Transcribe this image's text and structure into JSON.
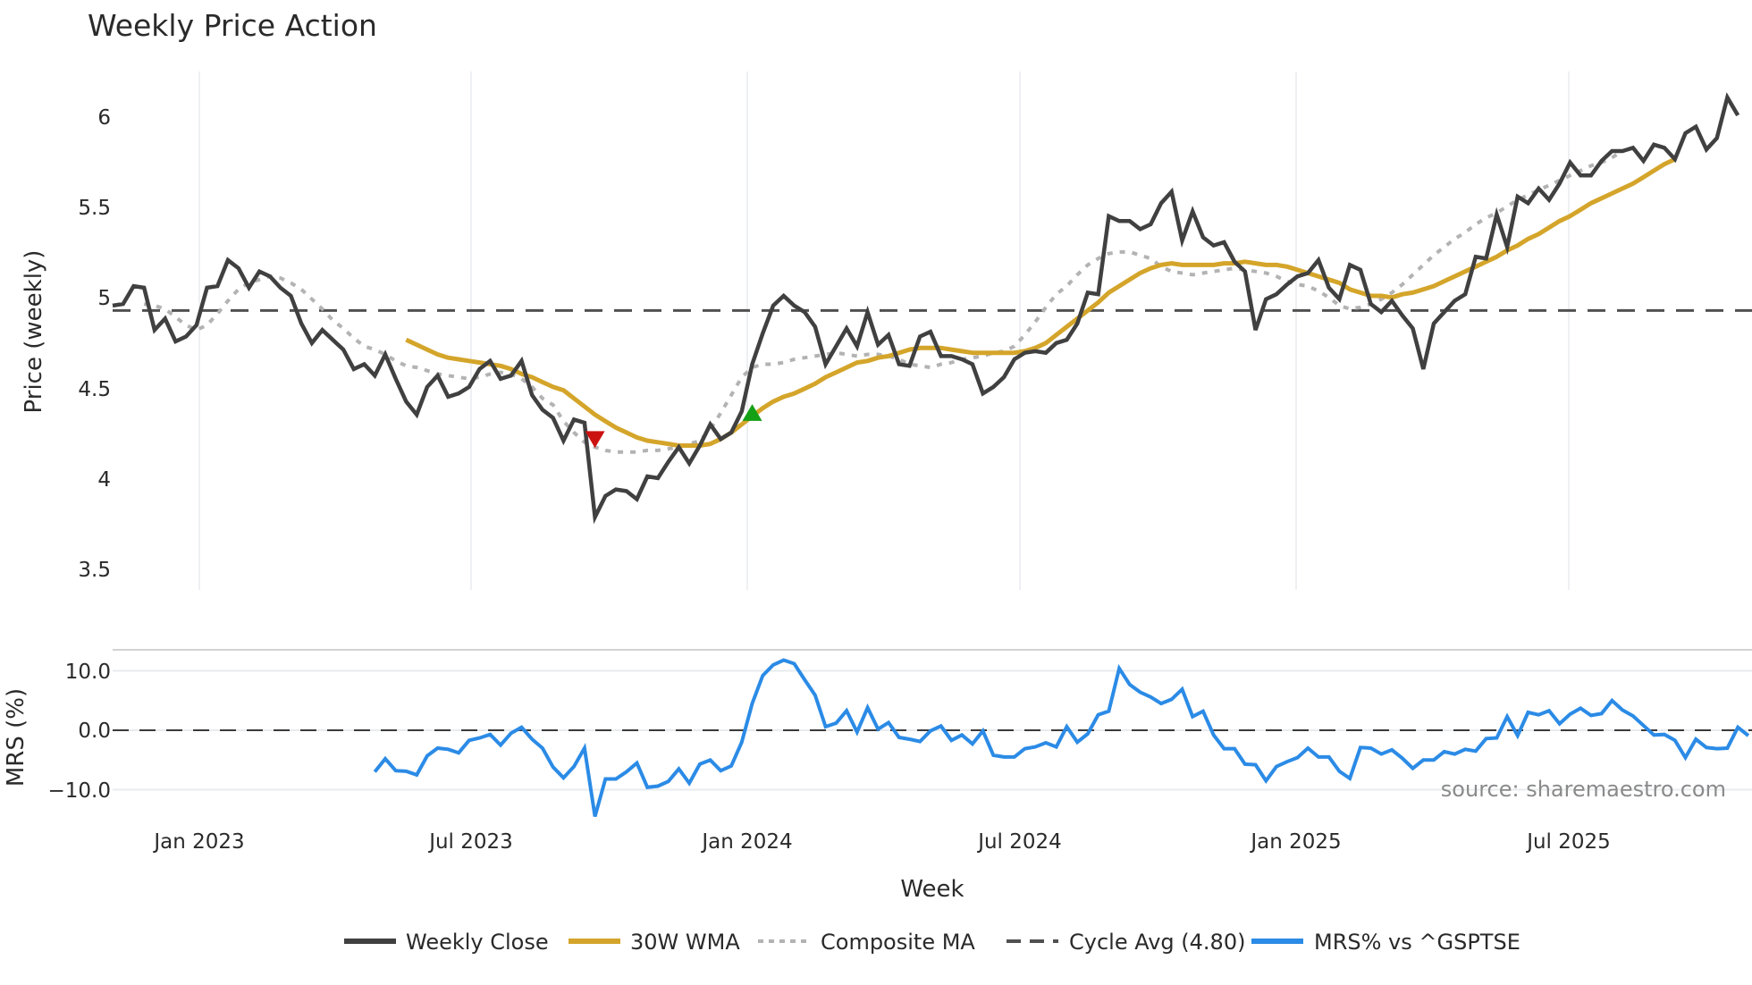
{
  "title": "Weekly Price Action",
  "source_note": "source: sharemaestro.com",
  "price_panel": {
    "ylabel": "Price (weekly)",
    "yticks": [
      "6",
      "5.5",
      "5",
      "4.5",
      "4",
      "3.5"
    ],
    "ytick_values": [
      6,
      5.5,
      5,
      4.5,
      4,
      3.5
    ]
  },
  "mrs_panel": {
    "ylabel": "MRS (%)",
    "yticks": [
      "10.0",
      "0.0",
      "−10.0"
    ],
    "ytick_values": [
      10,
      0,
      -10
    ]
  },
  "xaxis": {
    "label": "Week",
    "ticks": [
      "Jan 2023",
      "Jul 2023",
      "Jan 2024",
      "Jul 2024",
      "Jan 2025",
      "Jul 2025"
    ]
  },
  "legend": [
    {
      "label": "Weekly Close",
      "style": "solid",
      "color": "#404040"
    },
    {
      "label": "30W WMA",
      "style": "solid",
      "color": "#d4a52a"
    },
    {
      "label": "Composite MA",
      "style": "dotted",
      "color": "#b3b3b3"
    },
    {
      "label": "Cycle Avg (4.80)",
      "style": "dashed",
      "color": "#505050"
    },
    {
      "label": "MRS% vs ^GSPTSE",
      "style": "solid",
      "color": "#2b8be6"
    }
  ],
  "colors": {
    "close": "#404040",
    "wma": "#d4a52a",
    "composite": "#b3b3b3",
    "cycle": "#505050",
    "mrs": "#2b8be6",
    "buy_marker": "#16a016",
    "sell_marker": "#cc1111",
    "grid": "#e8ecef"
  },
  "chart_data": [
    {
      "type": "line",
      "title": "Weekly Price Action",
      "xlabel": "Week",
      "ylabel": "Price (weekly)",
      "ylim": [
        3.38,
        6.25
      ],
      "grid": true,
      "legend_position": "bottom",
      "x_tick_labels": [
        "Jan 2023",
        "Jul 2023",
        "Jan 2024",
        "Jul 2024",
        "Jan 2025",
        "Jul 2025"
      ],
      "x_start": "Nov 2022",
      "x_end": "Oct 2025",
      "series": [
        {
          "name": "Weekly Close",
          "values": [
            4.83,
            4.84,
            4.95,
            4.94,
            4.68,
            4.75,
            4.61,
            4.64,
            4.71,
            4.94,
            4.95,
            5.11,
            5.06,
            4.94,
            5.04,
            5.01,
            4.94,
            4.89,
            4.72,
            4.6,
            4.68,
            4.62,
            4.56,
            4.44,
            4.47,
            4.4,
            4.53,
            4.38,
            4.24,
            4.16,
            4.33,
            4.4,
            4.27,
            4.29,
            4.33,
            4.44,
            4.49,
            4.38,
            4.4,
            4.49,
            4.28,
            4.19,
            4.14,
            4.0,
            4.13,
            4.11,
            3.53,
            3.66,
            3.7,
            3.69,
            3.64,
            3.78,
            3.77,
            3.87,
            3.96,
            3.86,
            3.97,
            4.1,
            4.01,
            4.05,
            4.18,
            4.47,
            4.66,
            4.83,
            4.89,
            4.83,
            4.79,
            4.7,
            4.47,
            4.58,
            4.69,
            4.58,
            4.79,
            4.59,
            4.65,
            4.47,
            4.46,
            4.64,
            4.67,
            4.52,
            4.52,
            4.5,
            4.47,
            4.29,
            4.33,
            4.39,
            4.5,
            4.54,
            4.55,
            4.54,
            4.6,
            4.62,
            4.72,
            4.91,
            4.9,
            5.38,
            5.35,
            5.35,
            5.3,
            5.33,
            5.46,
            5.53,
            5.23,
            5.41,
            5.25,
            5.2,
            5.22,
            5.1,
            5.04,
            4.68,
            4.87,
            4.9,
            4.96,
            5.01,
            5.03,
            5.11,
            4.94,
            4.87,
            5.08,
            5.05,
            4.84,
            4.79,
            4.86,
            4.77,
            4.69,
            4.44,
            4.72,
            4.79,
            4.86,
            4.9,
            5.13,
            5.12,
            5.39,
            5.19,
            5.5,
            5.46,
            5.55,
            5.48,
            5.58,
            5.71,
            5.63,
            5.63,
            5.72,
            5.78,
            5.78,
            5.8,
            5.72,
            5.82,
            5.8,
            5.73,
            5.89,
            5.93,
            5.79,
            5.86,
            6.11,
            6.0
          ]
        },
        {
          "name": "30W WMA",
          "start_index": 28,
          "values": [
            4.62,
            4.59,
            4.56,
            4.53,
            4.51,
            4.5,
            4.49,
            4.48,
            4.47,
            4.46,
            4.44,
            4.41,
            4.39,
            4.36,
            4.33,
            4.31,
            4.26,
            4.21,
            4.16,
            4.12,
            4.08,
            4.05,
            4.02,
            4.0,
            3.99,
            3.98,
            3.97,
            3.97,
            3.97,
            3.98,
            4.01,
            4.05,
            4.1,
            4.15,
            4.2,
            4.24,
            4.27,
            4.29,
            4.32,
            4.35,
            4.39,
            4.42,
            4.45,
            4.48,
            4.49,
            4.51,
            4.52,
            4.54,
            4.56,
            4.57,
            4.57,
            4.57,
            4.56,
            4.55,
            4.54,
            4.54,
            4.54,
            4.54,
            4.54,
            4.55,
            4.57,
            4.6,
            4.65,
            4.7,
            4.75,
            4.8,
            4.85,
            4.91,
            4.95,
            4.99,
            5.03,
            5.06,
            5.08,
            5.09,
            5.08,
            5.08,
            5.08,
            5.08,
            5.09,
            5.09,
            5.1,
            5.09,
            5.08,
            5.08,
            5.07,
            5.05,
            5.03,
            5.01,
            4.99,
            4.97,
            4.93,
            4.91,
            4.89,
            4.89,
            4.88,
            4.9,
            4.91,
            4.93,
            4.95,
            4.98,
            5.01,
            5.04,
            5.07,
            5.1,
            5.13,
            5.17,
            5.2,
            5.24,
            5.27,
            5.31,
            5.35,
            5.38,
            5.42,
            5.46,
            5.49,
            5.52,
            5.55,
            5.58,
            5.62,
            5.66,
            5.7,
            5.73
          ]
        },
        {
          "name": "Composite MA",
          "start_index": 3,
          "values": [
            4.84,
            4.83,
            4.81,
            4.76,
            4.71,
            4.68,
            4.71,
            4.78,
            4.86,
            4.93,
            4.97,
            4.99,
            5.01,
            5.0,
            4.97,
            4.93,
            4.87,
            4.81,
            4.74,
            4.69,
            4.63,
            4.58,
            4.56,
            4.53,
            4.49,
            4.46,
            4.45,
            4.43,
            4.41,
            4.4,
            4.39,
            4.38,
            4.39,
            4.41,
            4.42,
            4.41,
            4.38,
            4.33,
            4.26,
            4.22,
            4.12,
            4.05,
            3.99,
            3.96,
            3.94,
            3.93,
            3.93,
            3.93,
            3.94,
            3.94,
            3.95,
            3.96,
            3.98,
            4.0,
            4.07,
            4.17,
            4.28,
            4.39,
            4.45,
            4.47,
            4.47,
            4.48,
            4.5,
            4.51,
            4.52,
            4.53,
            4.54,
            4.53,
            4.52,
            4.53,
            4.53,
            4.52,
            4.5,
            4.47,
            4.46,
            4.45,
            4.47,
            4.48,
            4.5,
            4.51,
            4.52,
            4.54,
            4.55,
            4.58,
            4.65,
            4.73,
            4.82,
            4.9,
            4.95,
            5.02,
            5.08,
            5.12,
            5.15,
            5.16,
            5.16,
            5.14,
            5.12,
            5.07,
            5.04,
            5.03,
            5.02,
            5.03,
            5.04,
            5.05,
            5.06,
            5.05,
            5.04,
            5.03,
            5.01,
            4.98,
            4.96,
            4.95,
            4.92,
            4.88,
            4.83,
            4.81,
            4.82,
            4.84,
            4.87,
            4.91,
            4.96,
            5.02,
            5.08,
            5.14,
            5.19,
            5.24,
            5.28,
            5.33,
            5.37,
            5.4,
            5.44,
            5.48,
            5.51,
            5.54,
            5.57,
            5.6,
            5.63,
            5.66,
            5.69,
            5.71,
            5.74,
            5.78
          ]
        },
        {
          "name": "Cycle Avg (4.80)",
          "constant": 4.8
        }
      ],
      "annotations": [
        {
          "type": "sell-marker",
          "shape": "down-triangle",
          "color": "#cc1111",
          "index": 46,
          "value": 4.01
        },
        {
          "type": "buy-marker",
          "shape": "up-triangle",
          "color": "#16a016",
          "index": 61,
          "value": 4.17
        }
      ]
    },
    {
      "type": "line",
      "title": "",
      "xlabel": "Week",
      "ylabel": "MRS (%)",
      "ylim": [
        -16,
        14
      ],
      "grid": true,
      "reference_line": 0,
      "series": [
        {
          "name": "MRS% vs ^GSPTSE",
          "start_index": 25,
          "values": [
            -7.0,
            -4.8,
            -6.8,
            -6.9,
            -7.5,
            -4.3,
            -3.0,
            -3.2,
            -3.8,
            -1.7,
            -1.3,
            -0.7,
            -2.5,
            -0.5,
            0.5,
            -1.5,
            -3.0,
            -6.2,
            -8.0,
            -6.1,
            -3.0,
            -14.5,
            -8.2,
            -8.2,
            -7.0,
            -5.5,
            -9.6,
            -9.4,
            -8.6,
            -6.5,
            -8.9,
            -5.7,
            -5.0,
            -6.8,
            -6.0,
            -2.0,
            4.5,
            9.2,
            11.0,
            11.8,
            11.2,
            8.5,
            5.9,
            0.6,
            1.2,
            3.3,
            -0.3,
            3.8,
            0.2,
            1.3,
            -1.2,
            -1.5,
            -1.9,
            -0.1,
            0.7,
            -1.7,
            -0.8,
            -2.3,
            -0.1,
            -4.2,
            -4.5,
            -4.5,
            -3.1,
            -2.8,
            -2.1,
            -2.8,
            0.6,
            -2.0,
            -0.6,
            2.6,
            3.2,
            10.4,
            7.7,
            6.4,
            5.6,
            4.5,
            5.2,
            6.9,
            2.3,
            3.2,
            -0.8,
            -3.1,
            -3.1,
            -5.7,
            -5.8,
            -8.5,
            -6.1,
            -5.3,
            -4.6,
            -3.0,
            -4.5,
            -4.5,
            -6.9,
            -8.1,
            -2.9,
            -3.0,
            -4.0,
            -3.3,
            -4.7,
            -6.4,
            -5.0,
            -5.0,
            -3.6,
            -4.0,
            -3.2,
            -3.5,
            -1.4,
            -1.3,
            2.3,
            -0.9,
            3.0,
            2.6,
            3.3,
            1.1,
            2.7,
            3.7,
            2.5,
            2.8,
            5.0,
            3.4,
            2.4,
            0.8,
            -0.8,
            -0.7,
            -1.7,
            -4.6,
            -1.5,
            -2.9,
            -3.1,
            -3.0,
            0.5,
            -0.9
          ]
        }
      ]
    }
  ]
}
